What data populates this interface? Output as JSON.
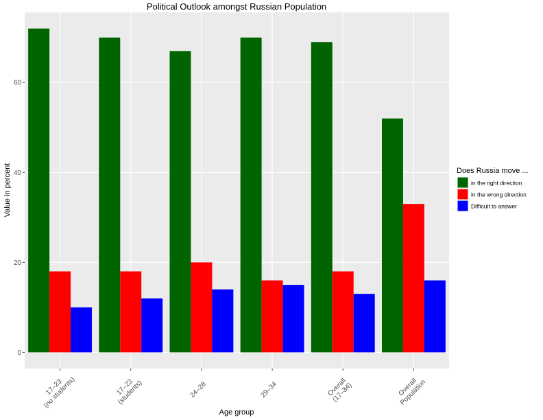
{
  "chart_data": {
    "type": "bar",
    "title": "Political Outlook amongst Russian Population",
    "x_label": "Age group",
    "y_label": "Value in percent",
    "categories": [
      "17–23\n(no students)",
      "17–23\n(students)",
      "24–28",
      "29–34",
      "Overall\n(17–34)",
      "Overall\nPopulation"
    ],
    "series": [
      {
        "name": "in the right direction",
        "color": "#006400",
        "values": [
          72,
          70,
          67,
          70,
          69,
          52
        ]
      },
      {
        "name": "in the wrong direction",
        "color": "#ff0000",
        "values": [
          18,
          18,
          20,
          16,
          18,
          33
        ]
      },
      {
        "name": "Difficult to answer",
        "color": "#0000ff",
        "values": [
          10,
          12,
          14,
          15,
          13,
          16
        ]
      }
    ],
    "legend_title": "Does Russia move ...",
    "ylim": [
      -3.6,
      75.6
    ],
    "yticks": [
      0,
      20,
      40,
      60
    ],
    "grid": true
  }
}
